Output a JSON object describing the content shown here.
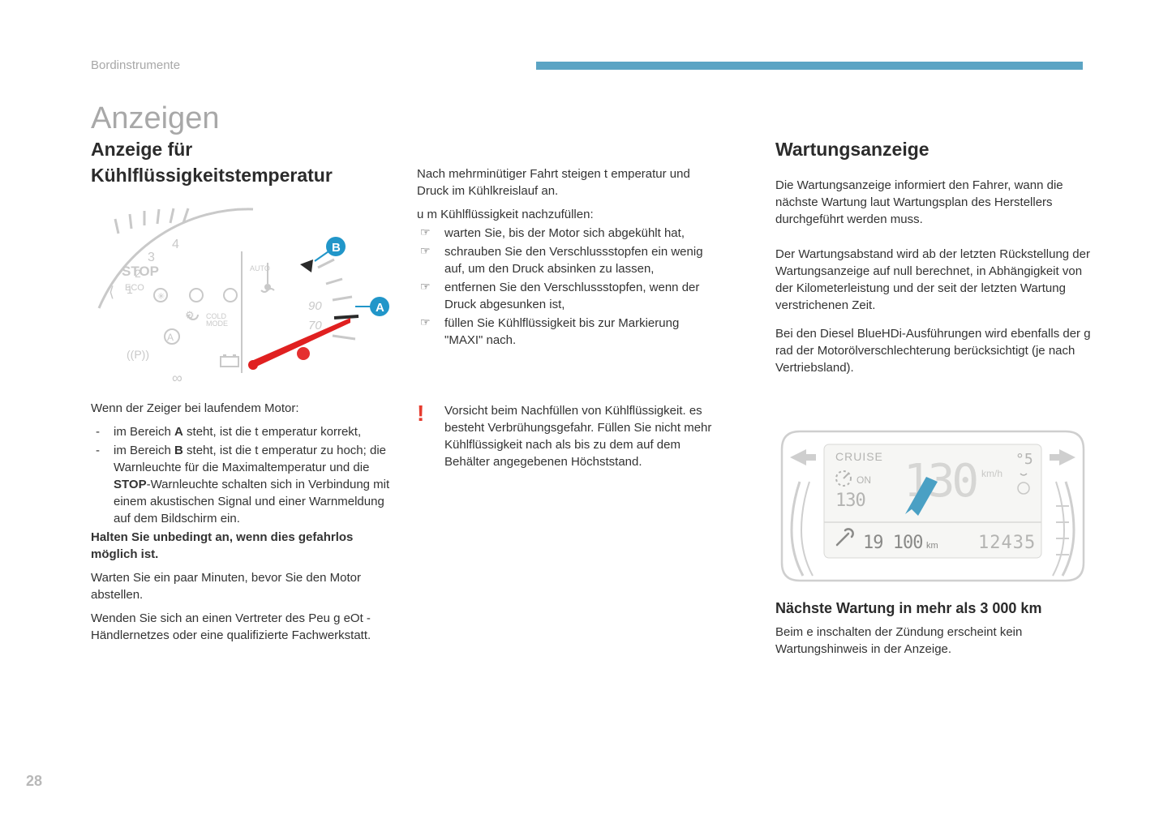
{
  "breadcrumb": "Bordinstrumente",
  "page_title": "Anzeigen",
  "page_number": "28",
  "accent_bar_color": "#5ba4c4",
  "col1": {
    "heading": "Anzeige für Kühlflüssigkeitstemperatur",
    "gauge": {
      "stroke_color": "#c9c9c9",
      "text_color": "#c9c9c9",
      "needle_color": "#e02020",
      "dot_red": "#e53030",
      "marker_A_color": "#2196c9",
      "marker_B_color": "#2196c9",
      "bg": "#ffffff",
      "labels": {
        "stop": "STOP",
        "auto": "AUTO",
        "num4": "4",
        "num3": "3",
        "num2": "2",
        "num1": "1",
        "t90": "90",
        "t70": "70",
        "eco": "ECO",
        "p": "((P))",
        "inf": "∞"
      },
      "marker_A": "A",
      "marker_B": "B"
    },
    "zeiger_intro": "Wenn der Zeiger bei laufendem Motor:",
    "zeiger_items": [
      "im Bereich <b>A</b> steht, ist die t emperatur korrekt,",
      "im Bereich <b>B</b> steht, ist die t emperatur zu hoch; die Warnleuchte für die Maximaltemperatur und die <b>STOP</b>-Warnleuchte schalten sich in Verbindung mit einem akustischen Signal und einer Warnmeldung auf dem Bildschirm ein."
    ],
    "bold_line": "Halten Sie unbedingt an, wenn dies gefahrlos möglich ist.",
    "p1": "Warten Sie ein paar Minuten, bevor Sie den Motor abstellen.",
    "p2": "Wenden Sie sich an einen Vertreter des Peu g eOt -Händlernetzes oder eine qualifizierte Fachwerkstatt."
  },
  "col2": {
    "intro1": "Nach mehrminütiger Fahrt steigen t emperatur und Druck im Kühlkreislauf an.",
    "intro2": "u m Kühlflüssigkeit nachzufüllen:",
    "steps": [
      "warten Sie, bis der Motor sich abgekühlt hat,",
      "schrauben Sie den Verschlussstopfen ein wenig auf, um den Druck absinken zu lassen,",
      "entfernen Sie den Verschlussstopfen, wenn der Druck abgesunken ist,",
      "füllen Sie Kühlflüssigkeit bis zur Markierung \"MAXI\" nach."
    ],
    "warning": "Vorsicht beim Nachfüllen von Kühlflüssigkeit. es besteht Verbrühungsgefahr. Füllen Sie nicht mehr Kühlflüssigkeit nach als bis zu dem auf dem Behälter angegebenen Höchststand."
  },
  "col3": {
    "heading": "Wartungsanzeige",
    "p1": "Die Wartungsanzeige informiert den Fahrer, wann die nächste Wartung laut Wartungsplan des Herstellers durchgeführt werden muss.",
    "p2": "Der Wartungsabstand wird ab der letzten Rückstellung der Wartungsanzeige auf null berechnet, in Abhängigkeit von der Kilometerleistung und der seit der letzten Wartung verstrichenen Zeit.",
    "p3": "Bei den Diesel BlueHDi-Ausführungen wird ebenfalls der g rad der Motorölverschlechterung berücksichtigt (je nach Vertriebsland).",
    "display": {
      "stroke": "#cfcfcf",
      "lcd_bg": "#f6f6f4",
      "lcd_text": "#b4b4b2",
      "arrow_color": "#4aa0c4",
      "cruise": "CRUISE",
      "on": "ON",
      "speed": "130",
      "kmh": "km/h",
      "set": "130",
      "service_km": "19 100",
      "km_unit": "km",
      "odo": "12435",
      "temp": "°5"
    },
    "sub_heading": "Nächste Wartung in mehr als 3 000 km",
    "sub_p": "Beim e inschalten der Zündung erscheint kein Wartungshinweis in der Anzeige."
  }
}
